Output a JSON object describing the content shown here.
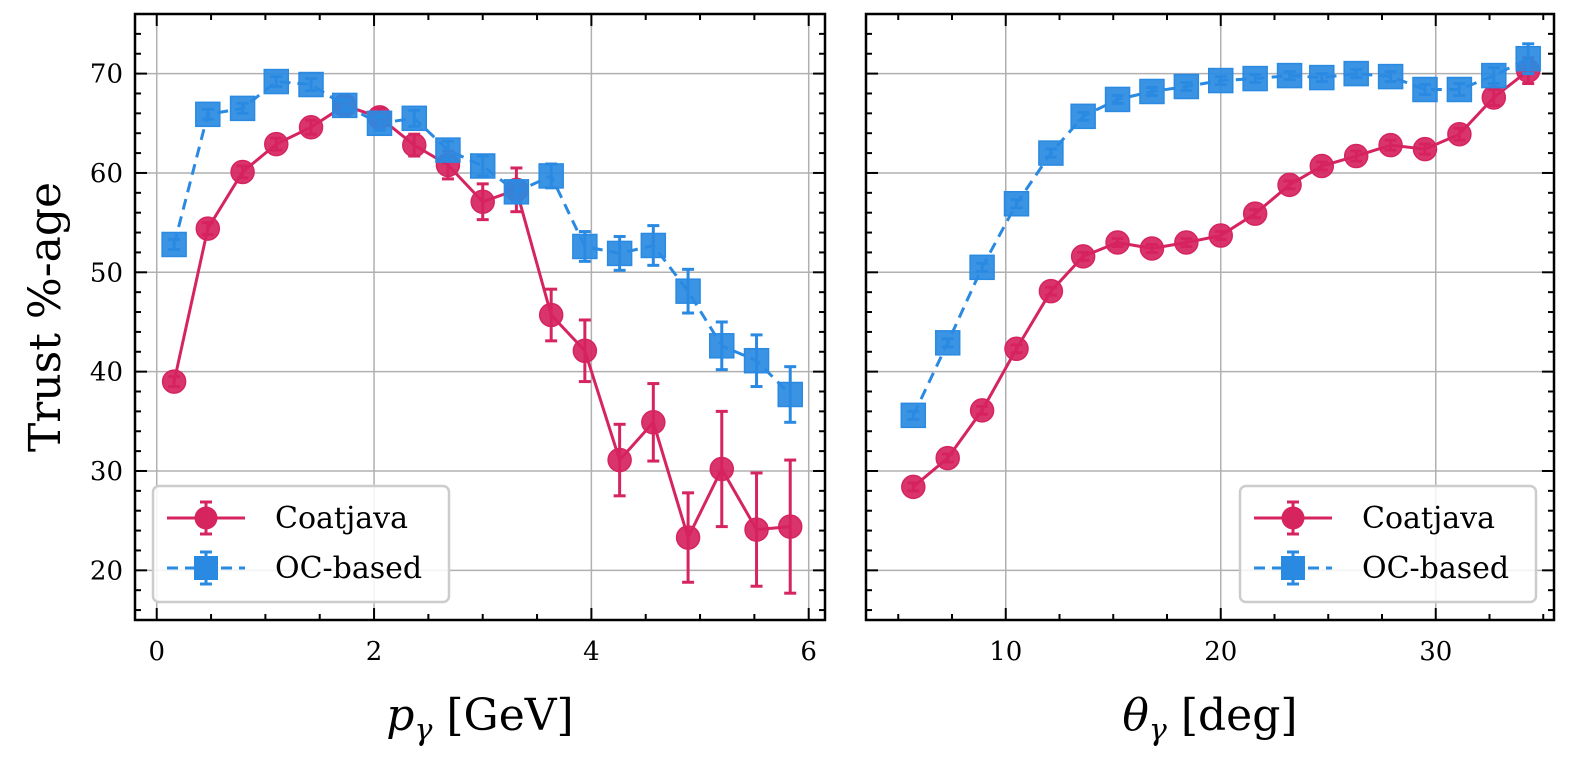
{
  "chart_data": [
    {
      "type": "line",
      "xlabel": "p_γ [GeV]",
      "ylabel": "Trust %-age",
      "xlim": [
        -0.2,
        6.15
      ],
      "ylim": [
        15,
        76
      ],
      "xticks": [
        0,
        2,
        4,
        6
      ],
      "yticks": [
        20,
        30,
        40,
        50,
        60,
        70
      ],
      "grid": true,
      "legend_position": "lower-left",
      "series": [
        {
          "name": "Coatjava",
          "color": "#d6245f",
          "marker": "circle",
          "linestyle": "solid",
          "x": [
            0.16,
            0.47,
            0.79,
            1.1,
            1.42,
            1.73,
            2.05,
            2.37,
            2.68,
            3.0,
            3.31,
            3.63,
            3.94,
            4.26,
            4.57,
            4.89,
            5.2,
            5.52,
            5.83
          ],
          "y": [
            39.0,
            54.4,
            60.1,
            62.9,
            64.6,
            66.8,
            65.6,
            62.8,
            60.8,
            57.1,
            58.3,
            45.7,
            42.1,
            31.1,
            34.9,
            23.3,
            30.2,
            24.1,
            24.4
          ],
          "yerr": [
            0.5,
            0.6,
            0.6,
            0.6,
            0.7,
            0.8,
            0.9,
            1.1,
            1.4,
            1.8,
            2.2,
            2.6,
            3.1,
            3.6,
            3.9,
            4.5,
            5.8,
            5.7,
            6.7
          ]
        },
        {
          "name": "OC-based",
          "color": "#2a8ae2",
          "marker": "square",
          "linestyle": "dashed",
          "x": [
            0.16,
            0.47,
            0.79,
            1.1,
            1.42,
            1.73,
            2.05,
            2.37,
            2.68,
            3.0,
            3.31,
            3.63,
            3.94,
            4.26,
            4.57,
            4.89,
            5.2,
            5.52,
            5.83
          ],
          "y": [
            52.8,
            65.9,
            66.5,
            69.2,
            68.9,
            66.8,
            65.0,
            65.5,
            62.3,
            60.7,
            58.1,
            59.7,
            52.6,
            51.9,
            52.7,
            48.1,
            42.6,
            41.1,
            37.7
          ],
          "yerr": [
            0.5,
            0.5,
            0.5,
            0.5,
            0.6,
            0.6,
            0.7,
            0.8,
            0.9,
            1.0,
            1.1,
            1.2,
            1.5,
            1.7,
            2.0,
            2.2,
            2.4,
            2.6,
            2.8
          ]
        }
      ]
    },
    {
      "type": "line",
      "xlabel": "θ_γ [deg]",
      "ylabel": "",
      "xlim": [
        3.5,
        35.5
      ],
      "ylim": [
        15,
        76
      ],
      "xticks": [
        10,
        20,
        30
      ],
      "yticks": [
        20,
        30,
        40,
        50,
        60,
        70
      ],
      "grid": true,
      "legend_position": "lower-right",
      "series": [
        {
          "name": "Coatjava",
          "color": "#d6245f",
          "marker": "circle",
          "linestyle": "solid",
          "x": [
            5.7,
            7.3,
            8.9,
            10.5,
            12.1,
            13.6,
            15.2,
            16.8,
            18.4,
            20.0,
            21.6,
            23.2,
            24.7,
            26.3,
            27.9,
            29.5,
            31.1,
            32.7,
            34.3
          ],
          "y": [
            28.4,
            31.3,
            36.1,
            42.3,
            48.1,
            51.6,
            53.0,
            52.4,
            53.0,
            53.7,
            55.9,
            58.8,
            60.7,
            61.7,
            62.8,
            62.4,
            63.9,
            67.6,
            70.3
          ],
          "yerr": [
            0.4,
            0.4,
            0.4,
            0.4,
            0.4,
            0.4,
            0.4,
            0.4,
            0.4,
            0.4,
            0.4,
            0.4,
            0.4,
            0.5,
            0.5,
            0.5,
            0.6,
            0.8,
            1.3
          ]
        },
        {
          "name": "OC-based",
          "color": "#2a8ae2",
          "marker": "square",
          "linestyle": "dashed",
          "x": [
            5.7,
            7.3,
            8.9,
            10.5,
            12.1,
            13.6,
            15.2,
            16.8,
            18.4,
            20.0,
            21.6,
            23.2,
            24.7,
            26.3,
            27.9,
            29.5,
            31.1,
            32.7,
            34.3
          ],
          "y": [
            35.6,
            42.9,
            50.5,
            56.9,
            62.0,
            65.7,
            67.4,
            68.2,
            68.7,
            69.3,
            69.5,
            69.8,
            69.6,
            70.0,
            69.7,
            68.4,
            68.4,
            69.8,
            71.5
          ],
          "yerr": [
            0.4,
            0.4,
            0.4,
            0.4,
            0.4,
            0.4,
            0.4,
            0.4,
            0.4,
            0.4,
            0.4,
            0.4,
            0.4,
            0.4,
            0.5,
            0.5,
            0.6,
            0.8,
            1.5
          ]
        }
      ]
    }
  ]
}
